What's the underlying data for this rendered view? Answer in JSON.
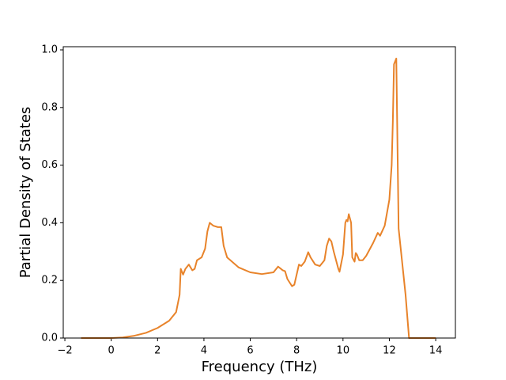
{
  "chart_data": {
    "type": "line",
    "x_label": "Frequency (THz)",
    "y_label": "Partial Density of States",
    "x": [
      -1.3,
      0,
      0.5,
      1,
      1.5,
      2,
      2.5,
      2.8,
      2.95,
      3.0,
      3.1,
      3.2,
      3.35,
      3.5,
      3.6,
      3.7,
      3.9,
      4.05,
      4.15,
      4.25,
      4.4,
      4.6,
      4.75,
      4.85,
      5.0,
      5.5,
      6.0,
      6.5,
      7.0,
      7.2,
      7.4,
      7.5,
      7.6,
      7.8,
      7.9,
      8.1,
      8.2,
      8.35,
      8.5,
      8.6,
      8.8,
      9.0,
      9.2,
      9.3,
      9.4,
      9.5,
      9.6,
      9.8,
      9.85,
      10.0,
      10.1,
      10.15,
      10.2,
      10.25,
      10.35,
      10.4,
      10.5,
      10.55,
      10.6,
      10.7,
      10.85,
      11.0,
      11.3,
      11.5,
      11.6,
      11.8,
      12.0,
      12.1,
      12.15,
      12.2,
      12.3,
      12.4,
      12.7,
      12.85,
      14.0
    ],
    "series": [
      {
        "color": "#e8832a",
        "values": [
          0,
          0,
          0.002,
          0.008,
          0.018,
          0.035,
          0.06,
          0.09,
          0.15,
          0.24,
          0.22,
          0.24,
          0.255,
          0.235,
          0.24,
          0.27,
          0.28,
          0.31,
          0.37,
          0.4,
          0.39,
          0.385,
          0.385,
          0.32,
          0.28,
          0.245,
          0.228,
          0.222,
          0.228,
          0.248,
          0.235,
          0.232,
          0.205,
          0.18,
          0.185,
          0.255,
          0.25,
          0.265,
          0.298,
          0.28,
          0.255,
          0.25,
          0.27,
          0.32,
          0.345,
          0.335,
          0.3,
          0.24,
          0.23,
          0.29,
          0.4,
          0.41,
          0.405,
          0.43,
          0.4,
          0.28,
          0.265,
          0.295,
          0.29,
          0.27,
          0.27,
          0.285,
          0.33,
          0.365,
          0.355,
          0.39,
          0.48,
          0.6,
          0.75,
          0.95,
          0.97,
          0.38,
          0.15,
          0,
          0
        ]
      }
    ],
    "xlim": [
      -2.07,
      14.85
    ],
    "ylim": [
      0,
      1.011
    ],
    "xticks": [
      {
        "value": -2,
        "label": "−2"
      },
      0,
      2,
      4,
      6,
      8,
      10,
      12,
      14
    ],
    "yticks": [
      {
        "value": 0,
        "label": "0.0"
      },
      0.2,
      0.4,
      0.6,
      0.8,
      {
        "value": 1,
        "label": "1.0"
      }
    ],
    "grid": false
  }
}
